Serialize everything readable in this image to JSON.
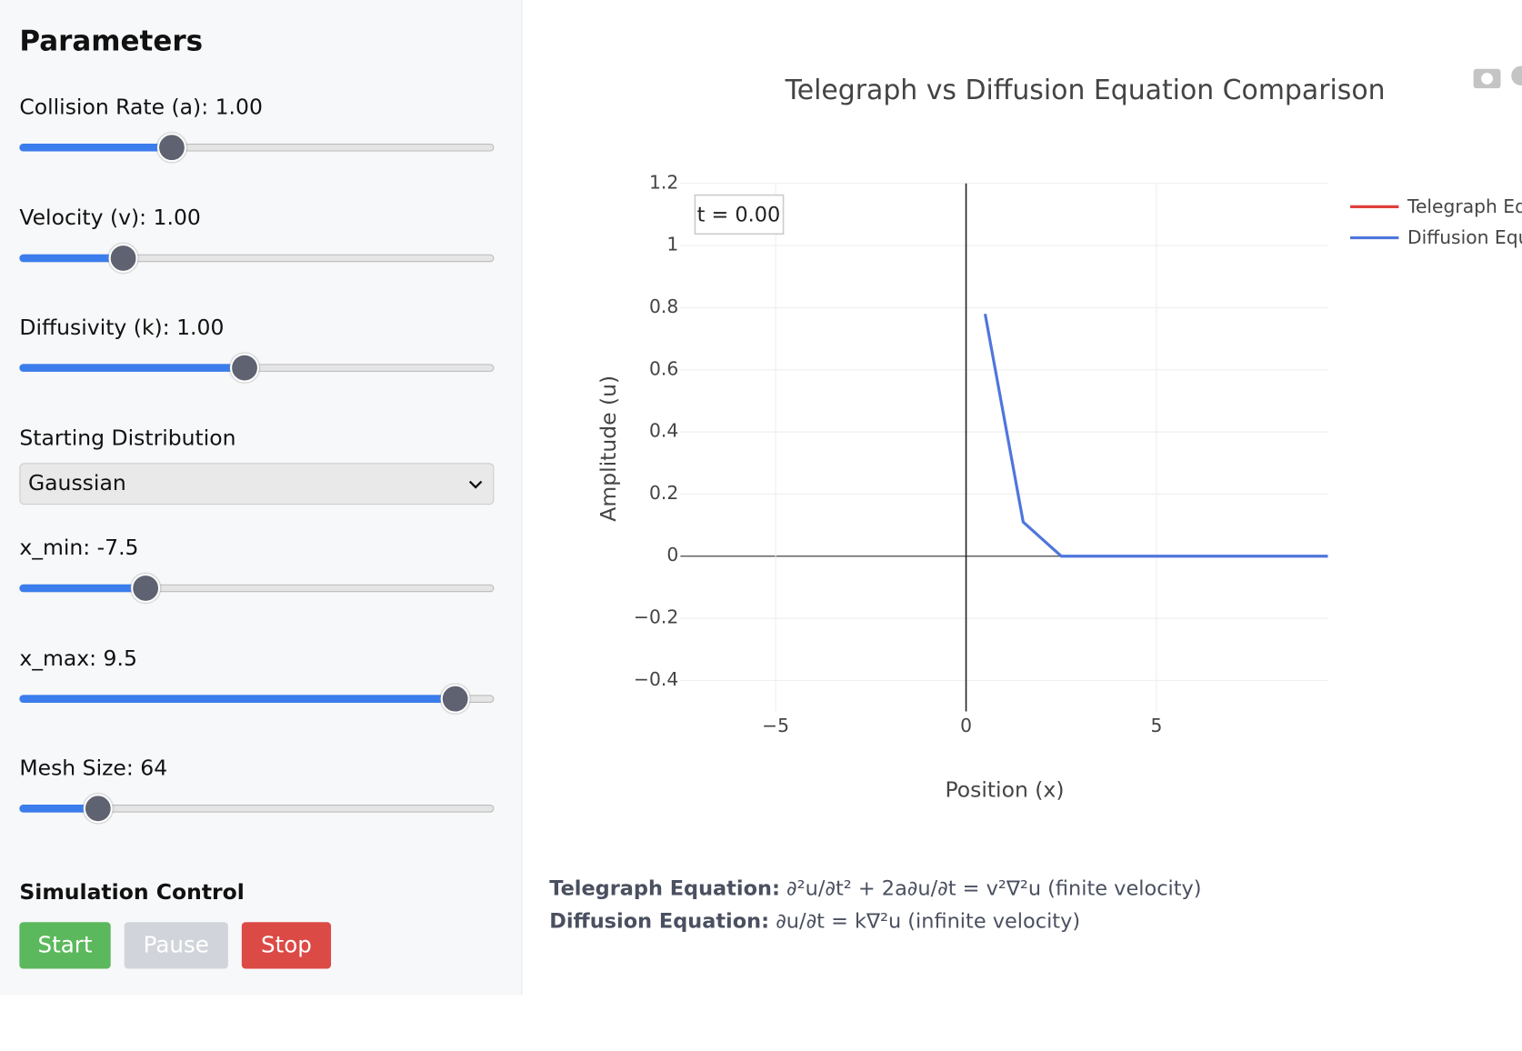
{
  "sidebar": {
    "title": "Parameters",
    "sliders": [
      {
        "label": "Collision Rate (a): 1.00"
      },
      {
        "label": "Velocity (v): 1.00"
      },
      {
        "label": "Diffusivity (k): 1.00"
      },
      {
        "label": "x_min: -7.5"
      },
      {
        "label": "x_max: 9.5"
      },
      {
        "label": "Mesh Size: 64"
      }
    ],
    "distribution": {
      "label": "Starting Distribution",
      "selected": "Gaussian"
    },
    "controls": {
      "title": "Simulation Control",
      "buttons": [
        "Start",
        "Pause",
        "Stop"
      ]
    }
  },
  "chart_data": {
    "type": "line",
    "title": "Telegraph vs Diffusion Equation Comparison",
    "x_label": "Position (x)",
    "y_label": "Amplitude (u)",
    "annotation": "t = 0.00",
    "series": [
      {
        "name": "Telegraph Equation",
        "color": "#e0403c",
        "x": [],
        "values": []
      },
      {
        "name": "Diffusion Equation",
        "color": "#4f76dc",
        "x": [
          0.5,
          1.5,
          2.5,
          5.5,
          9.5
        ],
        "values": [
          0.78,
          0.11,
          0,
          0,
          0
        ]
      }
    ],
    "xlim": [
      -7.5,
      9.5
    ],
    "ylim": [
      -0.5,
      1.2
    ],
    "xticks": [
      {
        "value": -5,
        "label": "−5"
      },
      0,
      5
    ],
    "yticks": [
      {
        "value": -0.4,
        "label": "−0.4"
      },
      {
        "value": -0.2,
        "label": "−0.2"
      },
      0,
      0.2,
      0.4,
      0.6,
      0.8,
      1,
      1.2
    ],
    "grid": true
  },
  "equations": [
    {
      "name": "Telegraph Equation:",
      "text": "∂²u/∂t² + 2a∂u/∂t = v²∇²u (finite velocity)"
    },
    {
      "name": "Diffusion Equation:",
      "text": "∂u/∂t = k∇²u (infinite velocity)"
    }
  ]
}
